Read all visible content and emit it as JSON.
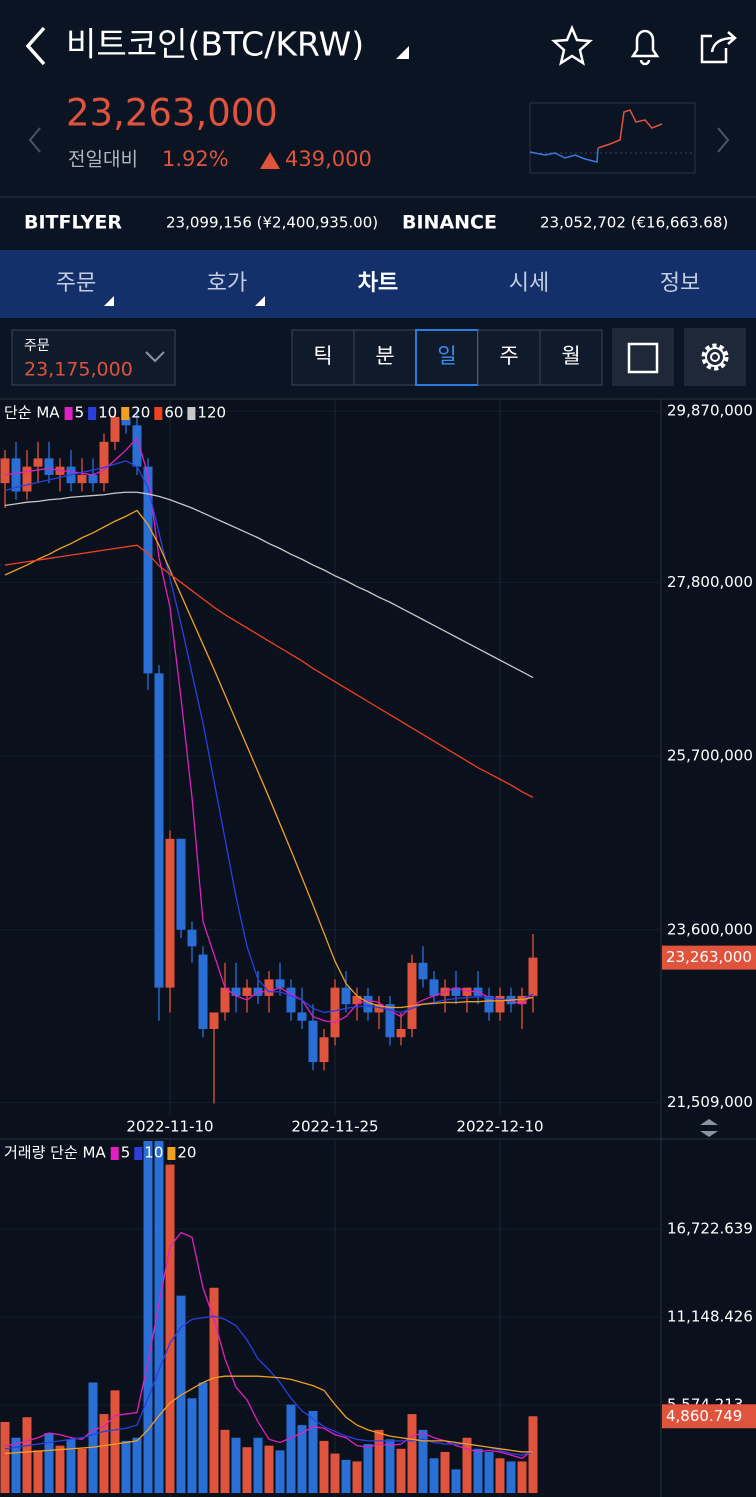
{
  "header": {
    "title": "비트코인(BTC/KRW)",
    "price": "23,263,000",
    "change_label": "전일대비",
    "change_rate": "1.92%",
    "change_amount": "439,000"
  },
  "exchanges": [
    {
      "name": "BITFLYER",
      "price": "23,099,156 (¥2,400,935.00)"
    },
    {
      "name": "BINANCE",
      "price": "23,052,702 (€16,663.68)"
    }
  ],
  "tabs": [
    "주문",
    "호가",
    "차트",
    "시세",
    "정보"
  ],
  "order_box": {
    "label": "주문",
    "price": "23,175,000"
  },
  "periods": [
    "틱",
    "분",
    "일",
    "주",
    "월"
  ],
  "chart_data": [
    {
      "type": "candlestick",
      "legend_title": "단순 MA",
      "price_tag": "23,263,000",
      "up_color": "#e0533d",
      "down_color": "#2a6fd6",
      "categories": [
        null,
        null,
        null,
        null,
        null,
        null,
        null,
        null,
        null,
        null,
        null,
        null,
        null,
        null,
        null,
        "2022-11-10",
        null,
        null,
        null,
        null,
        null,
        null,
        null,
        null,
        null,
        null,
        null,
        null,
        null,
        null,
        "2022-11-25",
        null,
        null,
        null,
        null,
        null,
        null,
        null,
        null,
        null,
        null,
        null,
        null,
        null,
        null,
        "2022-12-10",
        null,
        null,
        null
      ],
      "open": [
        29000000,
        29300000,
        28900000,
        29200000,
        29300000,
        29100000,
        29200000,
        29000000,
        29100000,
        29000000,
        29500000,
        29800000,
        29700000,
        29200000,
        26700000,
        22900000,
        24700000,
        23600000,
        23300000,
        22400000,
        22600000,
        22900000,
        22800000,
        22900000,
        22800000,
        23000000,
        22900000,
        22600000,
        22500000,
        22000000,
        22300000,
        22900000,
        22700000,
        22800000,
        22600000,
        22700000,
        22300000,
        22400000,
        23200000,
        23000000,
        22800000,
        22900000,
        22800000,
        22900000,
        22800000,
        22600000,
        22800000,
        22700000,
        22800000
      ],
      "high": [
        29400000,
        29500000,
        29400000,
        29500000,
        29500000,
        29300000,
        29400000,
        29300000,
        29300000,
        29600000,
        29900000,
        29900000,
        29900000,
        29300000,
        26800000,
        24800000,
        24700000,
        23700000,
        23400000,
        22600000,
        23200000,
        23200000,
        23000000,
        23100000,
        23100000,
        23200000,
        23000000,
        22900000,
        22700000,
        22400000,
        23000000,
        23100000,
        22900000,
        22900000,
        22800000,
        22800000,
        22600000,
        23300000,
        23400000,
        23100000,
        23000000,
        23100000,
        22900000,
        23100000,
        22900000,
        22900000,
        22900000,
        22900000,
        23550000
      ],
      "low": [
        28700000,
        28800000,
        28800000,
        29000000,
        29000000,
        28900000,
        28900000,
        28900000,
        28900000,
        28900000,
        29400000,
        29600000,
        29100000,
        26500000,
        22500000,
        22600000,
        23500000,
        23200000,
        22300000,
        21500000,
        22500000,
        22600000,
        22600000,
        22700000,
        22600000,
        22800000,
        22500000,
        22400000,
        21900000,
        21900000,
        22200000,
        22600000,
        22500000,
        22500000,
        22400000,
        22200000,
        22200000,
        22300000,
        22900000,
        22700000,
        22600000,
        22700000,
        22600000,
        22700000,
        22500000,
        22500000,
        22600000,
        22400000,
        22600000
      ],
      "close": [
        29300000,
        28900000,
        29200000,
        29300000,
        29100000,
        29200000,
        29000000,
        29100000,
        29000000,
        29500000,
        29800000,
        29700000,
        29200000,
        26700000,
        22900000,
        24700000,
        23600000,
        23400000,
        22400000,
        22600000,
        22900000,
        22800000,
        22900000,
        22800000,
        23000000,
        22900000,
        22600000,
        22500000,
        22000000,
        22300000,
        22900000,
        22700000,
        22800000,
        22600000,
        22700000,
        22300000,
        22400000,
        23200000,
        23000000,
        22800000,
        22900000,
        22800000,
        22900000,
        22800000,
        22600000,
        22800000,
        22700000,
        22800000,
        23263000
      ],
      "series": [
        {
          "name": "5",
          "color": "#e020c0",
          "values": [
            29100000,
            29120000,
            29140000,
            29160000,
            29180000,
            29150000,
            29140000,
            29120000,
            29100000,
            29160000,
            29280000,
            29400000,
            29550000,
            29100000,
            28100000,
            27500000,
            26400000,
            25200000,
            23700000,
            23300000,
            22900000,
            22800000,
            22750000,
            22850000,
            22850000,
            22900000,
            22820000,
            22750000,
            22550000,
            22500000,
            22480000,
            22550000,
            22700000,
            22750000,
            22720000,
            22620000,
            22550000,
            22680000,
            22750000,
            22800000,
            22850000,
            22900000,
            22860000,
            22850000,
            22780000,
            22760000,
            22740000,
            22700000,
            22830000
          ]
        },
        {
          "name": "10",
          "color": "#2a3fe0",
          "values": [
            28910000,
            28950000,
            28980000,
            29010000,
            29040000,
            29070000,
            29100000,
            29130000,
            29160000,
            29190000,
            29230000,
            29270000,
            29200000,
            28950000,
            28400000,
            27850000,
            27300000,
            26700000,
            26100000,
            25400000,
            24700000,
            24000000,
            23400000,
            23000000,
            22850000,
            22850000,
            22800000,
            22750000,
            22650000,
            22600000,
            22620000,
            22650000,
            22670000,
            22680000,
            22660000,
            22630000,
            22600000,
            22650000,
            22700000,
            22720000,
            22750000,
            22770000,
            22780000,
            22790000,
            22780000,
            22760000,
            22750000,
            22760000,
            22820000
          ]
        },
        {
          "name": "20",
          "color": "#f0a020",
          "values": [
            27890000,
            27950000,
            28010000,
            28080000,
            28140000,
            28210000,
            28270000,
            28340000,
            28400000,
            28470000,
            28540000,
            28600000,
            28670000,
            28500000,
            28250000,
            27950000,
            27650000,
            27350000,
            27050000,
            26750000,
            26440000,
            26130000,
            25820000,
            25510000,
            25200000,
            24880000,
            24560000,
            24230000,
            23900000,
            23560000,
            23220000,
            22950000,
            22800000,
            22720000,
            22680000,
            22660000,
            22660000,
            22680000,
            22700000,
            22710000,
            22720000,
            22720000,
            22730000,
            22730000,
            22740000,
            22740000,
            22750000,
            22760000,
            22780000
          ]
        },
        {
          "name": "60",
          "color": "#f04020",
          "values": [
            28010000,
            28030000,
            28050000,
            28070000,
            28090000,
            28110000,
            28130000,
            28150000,
            28170000,
            28190000,
            28210000,
            28230000,
            28250000,
            28150000,
            28000000,
            27900000,
            27800000,
            27700000,
            27600000,
            27500000,
            27410000,
            27330000,
            27250000,
            27170000,
            27090000,
            27010000,
            26930000,
            26850000,
            26760000,
            26680000,
            26600000,
            26520000,
            26440000,
            26360000,
            26280000,
            26200000,
            26120000,
            26040000,
            25960000,
            25880000,
            25800000,
            25720000,
            25640000,
            25560000,
            25490000,
            25420000,
            25350000,
            25270000,
            25200000
          ]
        },
        {
          "name": "120",
          "color": "#c8c8c8",
          "values": [
            28730000,
            28750000,
            28770000,
            28780000,
            28800000,
            28810000,
            28830000,
            28840000,
            28850000,
            28860000,
            28880000,
            28890000,
            28890000,
            28870000,
            28840000,
            28800000,
            28750000,
            28700000,
            28640000,
            28580000,
            28520000,
            28460000,
            28400000,
            28340000,
            28270000,
            28210000,
            28140000,
            28080000,
            28010000,
            27950000,
            27880000,
            27820000,
            27750000,
            27690000,
            27620000,
            27560000,
            27490000,
            27420000,
            27350000,
            27280000,
            27210000,
            27140000,
            27070000,
            27000000,
            26930000,
            26860000,
            26790000,
            26720000,
            26650000
          ]
        }
      ],
      "ylim": [
        21360000,
        30030000
      ],
      "yticks": [
        {
          "value": 29870000,
          "label": "29,870,000"
        },
        {
          "value": 27800000,
          "label": "27,800,000"
        },
        {
          "value": 25700000,
          "label": "25,700,000"
        },
        {
          "value": 23600000,
          "label": "23,600,000"
        },
        {
          "value": 21509000,
          "label": "21,509,000"
        }
      ],
      "grid": true
    },
    {
      "type": "bar",
      "legend_title": "거래량 단순 MA",
      "value_tag": "4,860.749",
      "values": [
        4500,
        3500,
        4800,
        2700,
        3800,
        3000,
        3400,
        2800,
        7000,
        5000,
        6500,
        3300,
        3500,
        22300,
        22300,
        20800,
        12500,
        6000,
        7000,
        13000,
        4000,
        3500,
        2900,
        3500,
        3000,
        2700,
        5600,
        4300,
        5200,
        3300,
        2500,
        2100,
        2000,
        3100,
        4000,
        3400,
        2800,
        5000,
        4000,
        2200,
        2600,
        1500,
        3500,
        2800,
        2600,
        2200,
        2000,
        2000,
        4860.749
      ],
      "series": [
        {
          "name": "5",
          "color": "#e020c0",
          "values": [
            3000,
            3100,
            3300,
            3500,
            3800,
            3700,
            3500,
            3400,
            4000,
            4200,
            4900,
            5000,
            5100,
            8300,
            12000,
            15600,
            16500,
            16200,
            13000,
            11000,
            8500,
            6700,
            5900,
            4500,
            3400,
            3200,
            3500,
            3800,
            4200,
            4100,
            3700,
            3500,
            3000,
            2900,
            3100,
            3000,
            3100,
            3600,
            3800,
            3500,
            3300,
            3000,
            2800,
            2600,
            2700,
            2600,
            2400,
            2200,
            2700
          ]
        },
        {
          "name": "10",
          "color": "#2a3fe0",
          "values": [
            2800,
            2900,
            3000,
            3100,
            3200,
            3300,
            3400,
            3500,
            3700,
            3900,
            4000,
            4100,
            4300,
            6000,
            7800,
            9500,
            10500,
            11000,
            11100,
            11200,
            11000,
            10600,
            9700,
            8500,
            7800,
            7000,
            6000,
            5200,
            4700,
            4200,
            3900,
            3600,
            3400,
            3300,
            3300,
            3300,
            3300,
            3300,
            3400,
            3200,
            3100,
            3100,
            3100,
            3000,
            2900,
            2700,
            2500,
            2400,
            2600
          ]
        },
        {
          "name": "20",
          "color": "#f0a020",
          "values": [
            2500,
            2550,
            2600,
            2650,
            2700,
            2750,
            2800,
            2850,
            2900,
            3000,
            3100,
            3200,
            3300,
            4000,
            4900,
            5700,
            6200,
            6600,
            7000,
            7300,
            7400,
            7400,
            7400,
            7400,
            7350,
            7300,
            7200,
            7000,
            6800,
            6500,
            5600,
            4800,
            4300,
            4000,
            3800,
            3600,
            3500,
            3400,
            3300,
            3300,
            3300,
            3200,
            3100,
            3000,
            2900,
            2800,
            2700,
            2600,
            2600
          ]
        }
      ],
      "ylim": [
        0,
        22360
      ],
      "yticks": [
        {
          "value": 16722.639,
          "label": "16,722.639"
        },
        {
          "value": 11148.426,
          "label": "11,148.426"
        },
        {
          "value": 5574.213,
          "label": "5,574.213"
        }
      ]
    }
  ]
}
